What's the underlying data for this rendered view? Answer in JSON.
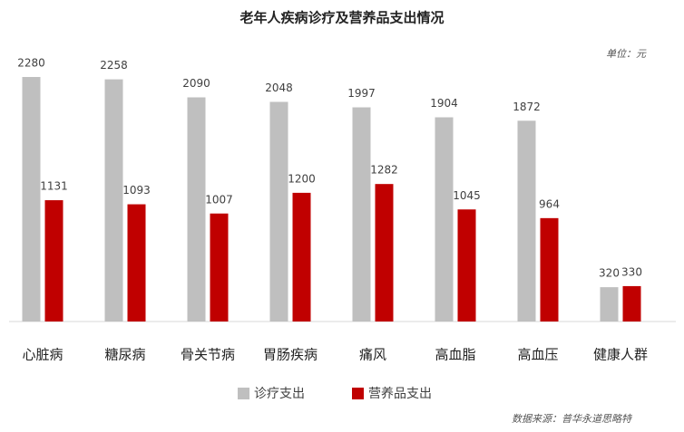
{
  "chart_data": {
    "type": "bar",
    "title": "老年人疾病诊疗及营养品支出情况",
    "unit": "单位：元",
    "source": "数据来源：普华永道思略特",
    "categories": [
      "心脏病",
      "糖尿病",
      "骨关节病",
      "胃肠疾病",
      "痛风",
      "高血脂",
      "高血压",
      "健康人群"
    ],
    "series": [
      {
        "name": "诊疗支出",
        "color": "#bfbfbf",
        "values": [
          2280,
          2258,
          2090,
          2048,
          1997,
          1904,
          1872,
          320
        ]
      },
      {
        "name": "营养品支出",
        "color": "#c00000",
        "values": [
          1131,
          1093,
          1007,
          1200,
          1282,
          1045,
          964,
          330
        ]
      }
    ]
  }
}
